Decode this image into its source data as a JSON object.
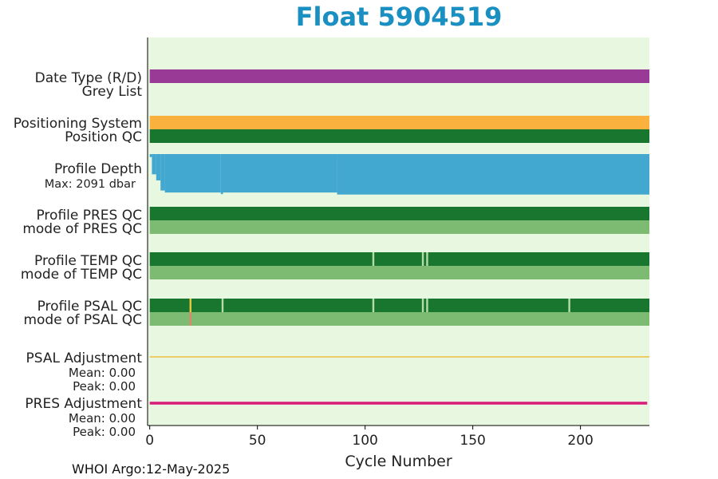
{
  "chart_data": {
    "type": "qc-timeline",
    "title": "Float 5904519",
    "xlabel": "Cycle Number",
    "xlim": [
      -1,
      232
    ],
    "xticks": [
      0,
      50,
      100,
      150,
      200
    ],
    "max_cycle": 232,
    "rows": [
      {
        "label": "Date Type (R/D)",
        "segments": [
          {
            "from": 0,
            "to": 232,
            "color": "#993a96"
          }
        ]
      },
      {
        "label": "Grey List",
        "segments": []
      },
      {
        "label": "Positioning System",
        "segments": [
          {
            "from": 0,
            "to": 232,
            "color": "#fbb13d"
          }
        ]
      },
      {
        "label": "Position QC",
        "segments": [
          {
            "from": 0,
            "to": 232,
            "color": "#18762e"
          }
        ]
      },
      {
        "label": "Profile PRES QC",
        "segments": [
          {
            "from": 0,
            "to": 232,
            "color": "#18762e"
          }
        ]
      },
      {
        "label": "mode of PRES QC",
        "segments": [
          {
            "from": 0,
            "to": 232,
            "color": "#7dba72"
          }
        ]
      },
      {
        "label": "Profile TEMP QC",
        "segments": [
          {
            "from": 0,
            "to": 232,
            "color": "#18762e"
          }
        ],
        "marks": [
          103,
          126,
          128
        ]
      },
      {
        "label": "mode of TEMP QC",
        "segments": [
          {
            "from": 0,
            "to": 232,
            "color": "#7dba72"
          }
        ]
      },
      {
        "label": "Profile PSAL QC",
        "segments": [
          {
            "from": 0,
            "to": 232,
            "color": "#18762e"
          }
        ],
        "marks": [
          33,
          103,
          126,
          128,
          194
        ],
        "flag_marks": [
          18
        ]
      },
      {
        "label": "mode of PSAL QC",
        "segments": [
          {
            "from": 0,
            "to": 232,
            "color": "#7dba72"
          }
        ],
        "flag_marks": [
          18
        ]
      }
    ],
    "profile_depth": {
      "label": "Profile Depth",
      "max_label": "Max: 2091 dbar",
      "max_dbar": 2091,
      "color": "#43a8cf",
      "depths": [
        {
          "from": 0,
          "to": 1,
          "dbar": 150
        },
        {
          "from": 1,
          "to": 3,
          "dbar": 1000
        },
        {
          "from": 3,
          "to": 5,
          "dbar": 1300
        },
        {
          "from": 5,
          "to": 7,
          "dbar": 1800
        },
        {
          "from": 7,
          "to": 33,
          "dbar": 1900
        },
        {
          "from": 33,
          "to": 34,
          "dbar": 1980
        },
        {
          "from": 34,
          "to": 87,
          "dbar": 1900
        },
        {
          "from": 87,
          "to": 232,
          "dbar": 2000
        }
      ]
    },
    "psal_adjustment": {
      "label": "PSAL Adjustment",
      "mean": "Mean: 0.00",
      "peak": "Peak: 0.00",
      "color": "#f0b020"
    },
    "pres_adjustment": {
      "label": "PRES Adjustment",
      "mean": "Mean: 0.00",
      "peak": "Peak: 0.00",
      "color": "#d81b78"
    },
    "background_color": "#e8f8e0"
  },
  "footer": "WHOI Argo:12-May-2025"
}
